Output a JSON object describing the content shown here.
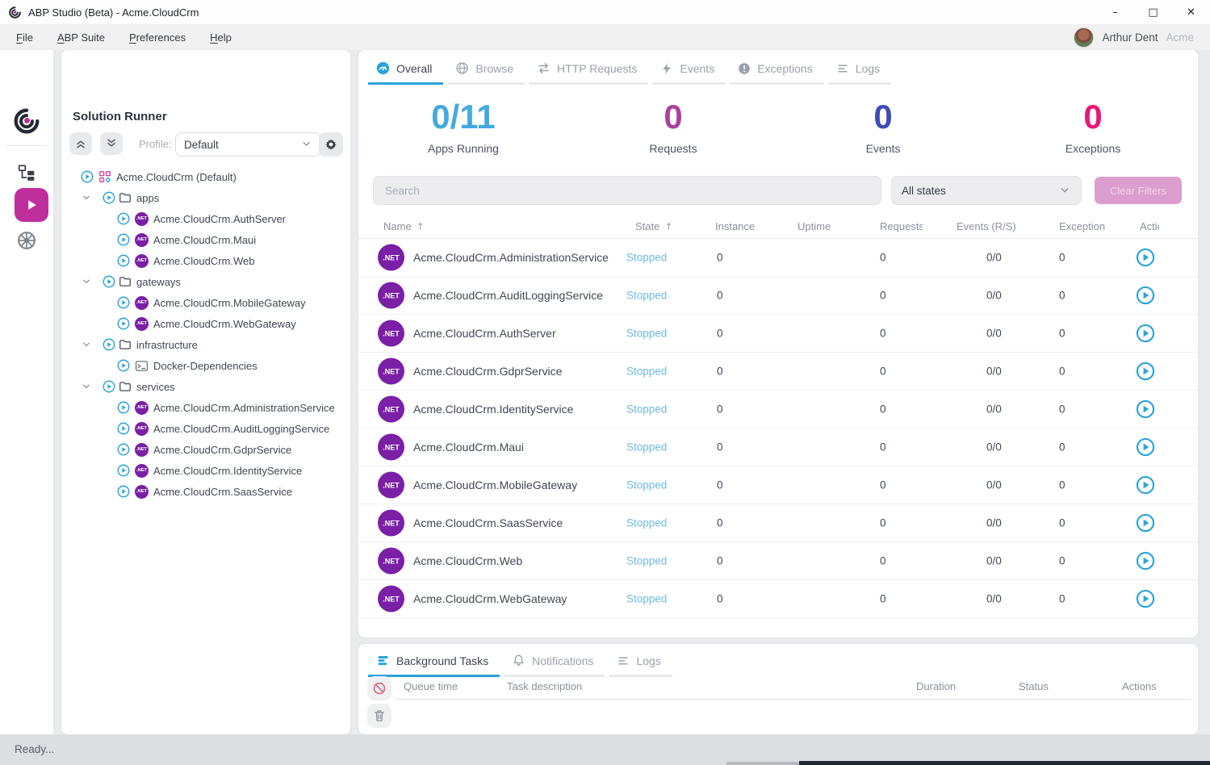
{
  "window": {
    "title": "ABP Studio (Beta) - Acme.CloudCrm",
    "controls": {
      "minimize": "–",
      "maximize": "□",
      "close": "✕"
    },
    "status": "Ready..."
  },
  "menubar": {
    "items": [
      {
        "label": "File"
      },
      {
        "label": "ABP Suite"
      },
      {
        "label": "Preferences"
      },
      {
        "label": "Help"
      }
    ],
    "user_name": "Arthur Dent",
    "tenant": "Acme"
  },
  "icons": {
    "dotnet_badge": ".NET",
    "sort_asc": "↑"
  },
  "runner": {
    "title": "Solution Runner",
    "profile_label": "Profile:",
    "profile_value": "Default",
    "tree": [
      {
        "label": "Acme.CloudCrm (Default)"
      },
      {
        "label": "apps"
      },
      {
        "label": "Acme.CloudCrm.AuthServer"
      },
      {
        "label": "Acme.CloudCrm.Maui"
      },
      {
        "label": "Acme.CloudCrm.Web"
      },
      {
        "label": "gateways"
      },
      {
        "label": "Acme.CloudCrm.MobileGateway"
      },
      {
        "label": "Acme.CloudCrm.WebGateway"
      },
      {
        "label": "infrastructure"
      },
      {
        "label": "Docker-Dependencies"
      },
      {
        "label": "services"
      },
      {
        "label": "Acme.CloudCrm.AdministrationService"
      },
      {
        "label": "Acme.CloudCrm.AuditLoggingService"
      },
      {
        "label": "Acme.CloudCrm.GdprService"
      },
      {
        "label": "Acme.CloudCrm.IdentityService"
      },
      {
        "label": "Acme.CloudCrm.SaasService"
      }
    ]
  },
  "main": {
    "tabs": [
      {
        "label": "Overall"
      },
      {
        "label": "Browse"
      },
      {
        "label": "HTTP Requests"
      },
      {
        "label": "Events"
      },
      {
        "label": "Exceptions"
      },
      {
        "label": "Logs"
      }
    ],
    "stats": [
      {
        "value": "0/11",
        "label": "Apps Running",
        "color": "#44a9dd"
      },
      {
        "value": "0",
        "label": "Requests",
        "color": "#a8439e"
      },
      {
        "value": "0",
        "label": "Events",
        "color": "#3e4cb8"
      },
      {
        "value": "0",
        "label": "Exceptions",
        "color": "#ea1778"
      }
    ],
    "search_placeholder": "Search",
    "state_filter_value": "All states",
    "clear_filters_label": "Clear Filters",
    "table": {
      "columns": {
        "name": "Name",
        "state": "State",
        "instance": "Instance",
        "uptime": "Uptime",
        "requests": "Requests",
        "events": "Events (R/S)",
        "exceptions": "Exceptions",
        "actions": "Actions"
      },
      "rows": [
        {
          "name": "Acme.CloudCrm.AdministrationService",
          "state": "Stopped",
          "instance": "0",
          "uptime": "",
          "requests": "0",
          "events": "0/0",
          "exceptions": "0"
        },
        {
          "name": "Acme.CloudCrm.AuditLoggingService",
          "state": "Stopped",
          "instance": "0",
          "uptime": "",
          "requests": "0",
          "events": "0/0",
          "exceptions": "0"
        },
        {
          "name": "Acme.CloudCrm.AuthServer",
          "state": "Stopped",
          "instance": "0",
          "uptime": "",
          "requests": "0",
          "events": "0/0",
          "exceptions": "0"
        },
        {
          "name": "Acme.CloudCrm.GdprService",
          "state": "Stopped",
          "instance": "0",
          "uptime": "",
          "requests": "0",
          "events": "0/0",
          "exceptions": "0"
        },
        {
          "name": "Acme.CloudCrm.IdentityService",
          "state": "Stopped",
          "instance": "0",
          "uptime": "",
          "requests": "0",
          "events": "0/0",
          "exceptions": "0"
        },
        {
          "name": "Acme.CloudCrm.Maui",
          "state": "Stopped",
          "instance": "0",
          "uptime": "",
          "requests": "0",
          "events": "0/0",
          "exceptions": "0"
        },
        {
          "name": "Acme.CloudCrm.MobileGateway",
          "state": "Stopped",
          "instance": "0",
          "uptime": "",
          "requests": "0",
          "events": "0/0",
          "exceptions": "0"
        },
        {
          "name": "Acme.CloudCrm.SaasService",
          "state": "Stopped",
          "instance": "0",
          "uptime": "",
          "requests": "0",
          "events": "0/0",
          "exceptions": "0"
        },
        {
          "name": "Acme.CloudCrm.Web",
          "state": "Stopped",
          "instance": "0",
          "uptime": "",
          "requests": "0",
          "events": "0/0",
          "exceptions": "0"
        },
        {
          "name": "Acme.CloudCrm.WebGateway",
          "state": "Stopped",
          "instance": "0",
          "uptime": "",
          "requests": "0",
          "events": "0/0",
          "exceptions": "0"
        }
      ]
    }
  },
  "bottom": {
    "tabs": [
      {
        "label": "Background Tasks"
      },
      {
        "label": "Notifications"
      },
      {
        "label": "Logs"
      }
    ],
    "columns": {
      "queue": "Queue time",
      "task": "Task description",
      "duration": "Duration",
      "status": "Status",
      "actions": "Actions"
    }
  }
}
